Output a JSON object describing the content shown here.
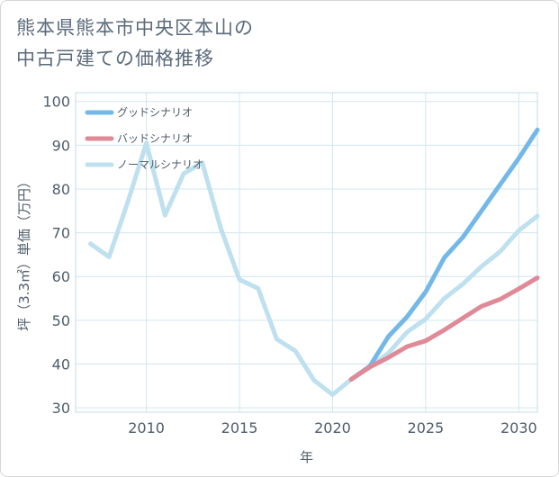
{
  "title_lines": [
    "熊本県熊本市中央区本山の",
    "中古戸建ての価格推移"
  ],
  "chart_data": {
    "type": "line",
    "title": "熊本県熊本市中央区本山の中古戸建ての価格推移",
    "xlabel": "年",
    "ylabel": "坪（3.3㎡）単価（万円）",
    "xlim": [
      2006.2,
      2031
    ],
    "ylim": [
      29,
      102
    ],
    "x_ticks": [
      2010,
      2015,
      2020,
      2025,
      2030
    ],
    "y_ticks": [
      30,
      40,
      50,
      60,
      70,
      80,
      90,
      100
    ],
    "grid": true,
    "legend_position": "top-left",
    "series": [
      {
        "name": "グッドシナリオ",
        "color": "#73b8e8",
        "x": [
          2021,
          2022,
          2023,
          2024,
          2025,
          2026,
          2027,
          2028,
          2029,
          2030,
          2031
        ],
        "y": [
          36.5,
          39.5,
          46.3,
          50.8,
          56.5,
          64.3,
          69.0,
          75.0,
          81.0,
          87.0,
          93.5
        ]
      },
      {
        "name": "バッドシナリオ",
        "color": "#df8a96",
        "x": [
          2021,
          2022,
          2023,
          2024,
          2025,
          2026,
          2027,
          2028,
          2029,
          2030,
          2031
        ],
        "y": [
          36.5,
          39.3,
          41.5,
          44.0,
          45.3,
          47.8,
          50.5,
          53.2,
          54.8,
          57.2,
          59.7
        ]
      },
      {
        "name": "ノーマルシナリオ",
        "color": "#bfe0ef",
        "x": [
          2007,
          2008,
          2009,
          2010,
          2011,
          2012,
          2013,
          2014,
          2015,
          2016,
          2017,
          2018,
          2019,
          2020,
          2021,
          2022,
          2023,
          2024,
          2025,
          2026,
          2027,
          2028,
          2029,
          2030,
          2031
        ],
        "y": [
          67.5,
          64.5,
          77.0,
          90.5,
          74.0,
          83.5,
          86.0,
          71.0,
          59.3,
          57.3,
          45.7,
          43.0,
          36.3,
          33.0,
          36.5,
          39.3,
          42.5,
          47.3,
          50.3,
          55.0,
          58.3,
          62.3,
          65.7,
          70.5,
          73.8
        ]
      }
    ]
  }
}
